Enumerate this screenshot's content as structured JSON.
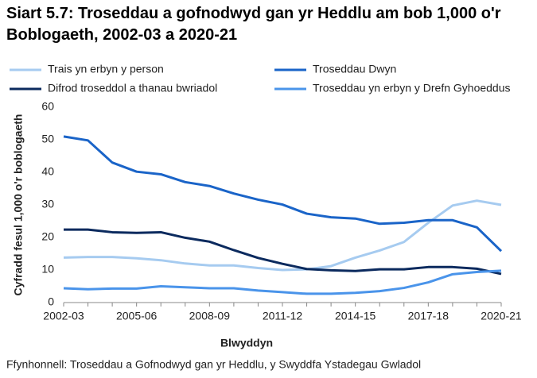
{
  "chart_data": {
    "type": "line",
    "title": "Siart 5.7: Troseddau a gofnodwyd gan yr Heddlu am bob 1,000 o'r Boblogaeth, 2002-03 a 2020-21",
    "x_label": "Blwyddyn",
    "y_label": "Cyfradd fesul 1,000 o'r boblogaeth",
    "source": "Ffynhonnell: Troseddau a Gofnodwyd gan yr Heddlu, y Swyddfa Ystadegau Gwladol",
    "categories": [
      "2002-03",
      null,
      null,
      "2005-06",
      null,
      null,
      "2008-09",
      null,
      null,
      "2011-12",
      null,
      null,
      "2014-15",
      null,
      null,
      "2017-18",
      null,
      null,
      "2020-21"
    ],
    "series": [
      {
        "name": "Trais yn erbyn y person",
        "color": "#a6cbf0",
        "values": [
          13.8,
          14,
          14,
          13.6,
          13,
          12,
          11.4,
          11.4,
          10.6,
          10,
          10.2,
          11.2,
          13.8,
          16,
          18.6,
          24.5,
          29.8,
          31.3,
          30
        ]
      },
      {
        "name": "Troseddau Dwyn",
        "color": "#1a64c8",
        "values": [
          51,
          49.8,
          43,
          40.2,
          39.4,
          37,
          35.8,
          33.5,
          31.6,
          30.1,
          27.3,
          26.2,
          25.8,
          24.2,
          24.5,
          25.3,
          25.3,
          23.1,
          15.8
        ]
      },
      {
        "name": "Difrod troseddol a thanau bwriadol",
        "color": "#0b2a5e",
        "values": [
          22.4,
          22.4,
          21.6,
          21.4,
          21.6,
          19.9,
          18.7,
          16.1,
          13.7,
          11.9,
          10.3,
          9.9,
          9.7,
          10.2,
          10.2,
          10.9,
          10.9,
          10.4,
          8.8
        ]
      },
      {
        "name": "Troseddau yn erbyn y Drefn Gyhoeddus",
        "color": "#4a94ea",
        "values": [
          4.4,
          4.1,
          4.3,
          4.3,
          5,
          4.7,
          4.4,
          4.4,
          3.7,
          3.2,
          2.7,
          2.7,
          3,
          3.5,
          4.5,
          6.2,
          8.7,
          9.4,
          9.8
        ]
      }
    ],
    "ylim": [
      0,
      60
    ],
    "yticks": [
      0,
      10,
      20,
      30,
      40,
      50,
      60
    ],
    "grid": false
  }
}
